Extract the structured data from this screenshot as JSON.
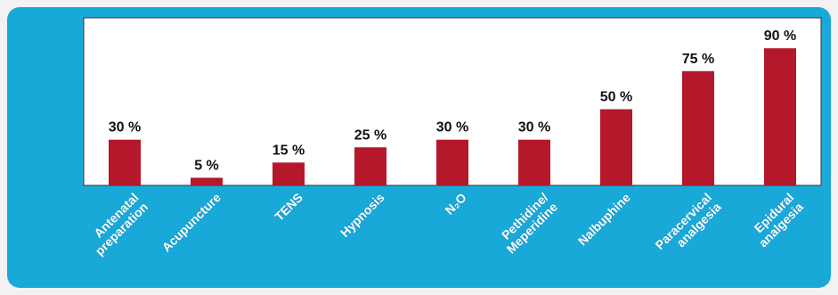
{
  "chart_data": {
    "type": "bar",
    "categories": [
      "Antenatal\npreparation",
      "Acupuncture",
      "TENS",
      "Hypnosis",
      "N₂O",
      "Pethidine/\nMeperidine",
      "Nalbuphine",
      "Paracervical\nanalgesia",
      "Epidural\nanalgesia"
    ],
    "values": [
      30,
      5,
      15,
      25,
      30,
      30,
      50,
      75,
      90
    ],
    "value_labels": [
      "30 %",
      "5 %",
      "15 %",
      "25 %",
      "30 %",
      "30 %",
      "50 %",
      "75 %",
      "90 %"
    ],
    "color": "#b5182b",
    "ylim": [
      0,
      110
    ]
  }
}
